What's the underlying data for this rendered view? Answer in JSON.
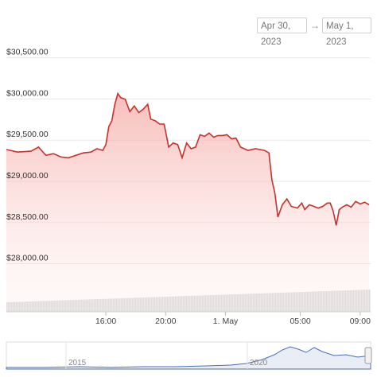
{
  "range": {
    "from": "Apr 30, 2023",
    "arrow": "→",
    "to": "May 1, 2023"
  },
  "colors": {
    "line": "#c8302a",
    "fill_top": "#f4b3b0",
    "volume": "#dcdcdc",
    "navigator": "#4a6fb5",
    "grid": "#e9e9e9"
  },
  "chart_data": {
    "type": "line",
    "y_ticks": [
      "$30,500.00",
      "$30,000.00",
      "$29,500.00",
      "$29,000.00",
      "$28,500.00",
      "$28,000.00"
    ],
    "y_tick_values": [
      30500,
      30000,
      29500,
      29000,
      28500,
      28000
    ],
    "ylim": [
      27300,
      30700
    ],
    "x_ticks": [
      "16:00",
      "20:00",
      "1. May",
      "05:00",
      "09:00"
    ],
    "x_tick_hours": [
      16,
      20,
      24,
      29,
      33
    ],
    "xlim": [
      9.35,
      33.7
    ],
    "series": [
      {
        "x": [
          9.35,
          10.1,
          11.0,
          11.5,
          12.0,
          12.5,
          13.0,
          13.5,
          14.0,
          14.5,
          15.0,
          15.4,
          15.6,
          15.8,
          16.0,
          16.2,
          16.4,
          16.6,
          16.8,
          17.0,
          17.3,
          17.6,
          17.9,
          18.2,
          18.5,
          18.8,
          19.0,
          19.3,
          19.6,
          19.9,
          20.2,
          20.5,
          20.8,
          21.1,
          21.4,
          21.7,
          22.0,
          22.3,
          22.6,
          22.9,
          23.2,
          23.5,
          23.8,
          24.1,
          24.4,
          24.7,
          25.0,
          25.5,
          26.0,
          26.3,
          26.6,
          26.9,
          27.1,
          27.3,
          27.5,
          27.8,
          28.1,
          28.4,
          28.8,
          29.1,
          29.3,
          29.6,
          29.9,
          30.2,
          30.5,
          30.8,
          31.0,
          31.2,
          31.4,
          31.6,
          31.8,
          32.1,
          32.4,
          32.7,
          33.0,
          33.3,
          33.6
        ],
        "y": [
          29270,
          29240,
          29250,
          29300,
          29200,
          29220,
          29180,
          29170,
          29200,
          29230,
          29240,
          29280,
          29270,
          29260,
          29330,
          29550,
          29620,
          29820,
          29950,
          29900,
          29880,
          29730,
          29800,
          29720,
          29760,
          29820,
          29640,
          29620,
          29580,
          29580,
          29300,
          29350,
          29330,
          29170,
          29350,
          29280,
          29300,
          29450,
          29430,
          29470,
          29420,
          29440,
          29440,
          29450,
          29400,
          29410,
          29300,
          29260,
          29280,
          29270,
          29260,
          29230,
          28900,
          28740,
          28450,
          28600,
          28670,
          28580,
          28560,
          28620,
          28540,
          28600,
          28580,
          28560,
          28580,
          28620,
          28620,
          28520,
          28350,
          28540,
          28570,
          28600,
          28570,
          28640,
          28610,
          28630,
          28600
        ]
      }
    ],
    "navigator": {
      "labels": [
        "2015",
        "2020"
      ]
    }
  }
}
